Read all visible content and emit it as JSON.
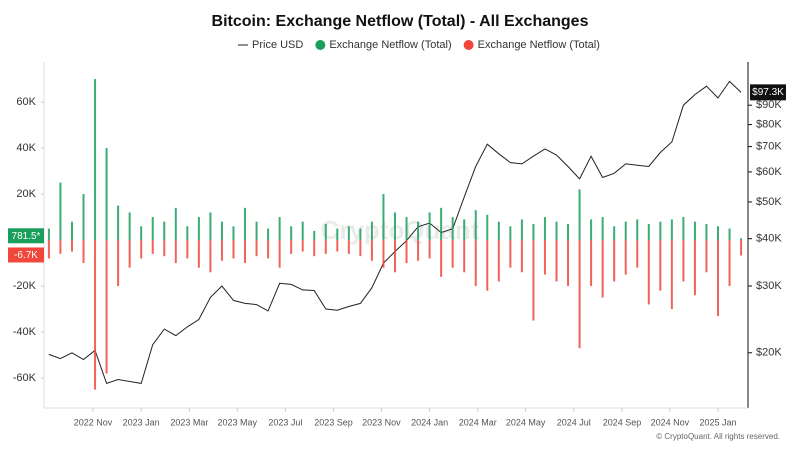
{
  "chart_data": {
    "type": "combo",
    "title": "Bitcoin: Exchange Netflow (Total) - All Exchanges",
    "watermark": "CryptoQuant",
    "footer": "© CryptoQuant. All rights reserved.",
    "x": [
      2022.68,
      2022.72,
      2022.76,
      2022.8,
      2022.84,
      2022.88,
      2022.92,
      2022.96,
      2023.0,
      2023.04,
      2023.08,
      2023.12,
      2023.16,
      2023.2,
      2023.24,
      2023.28,
      2023.32,
      2023.36,
      2023.4,
      2023.44,
      2023.48,
      2023.52,
      2023.56,
      2023.6,
      2023.64,
      2023.68,
      2023.72,
      2023.76,
      2023.8,
      2023.84,
      2023.88,
      2023.92,
      2023.96,
      2024.0,
      2024.04,
      2024.08,
      2024.12,
      2024.16,
      2024.2,
      2024.24,
      2024.28,
      2024.32,
      2024.36,
      2024.4,
      2024.44,
      2024.48,
      2024.52,
      2024.56,
      2024.6,
      2024.64,
      2024.68,
      2024.72,
      2024.76,
      2024.8,
      2024.84,
      2024.88,
      2024.92,
      2024.96,
      2025.0,
      2025.04,
      2025.08
    ],
    "xlim": [
      2022.663,
      2025.104
    ],
    "xticks": [
      {
        "value": 2022.833,
        "label": "2022 Nov"
      },
      {
        "value": 2023.0,
        "label": "2023 Jan"
      },
      {
        "value": 2023.167,
        "label": "2023 Mar"
      },
      {
        "value": 2023.333,
        "label": "2023 May"
      },
      {
        "value": 2023.5,
        "label": "2023 Jul"
      },
      {
        "value": 2023.667,
        "label": "2023 Sep"
      },
      {
        "value": 2023.833,
        "label": "2023 Nov"
      },
      {
        "value": 2024.0,
        "label": "2024 Jan"
      },
      {
        "value": 2024.167,
        "label": "2024 Mar"
      },
      {
        "value": 2024.333,
        "label": "2024 May"
      },
      {
        "value": 2024.5,
        "label": "2024 Jul"
      },
      {
        "value": 2024.667,
        "label": "2024 Sep"
      },
      {
        "value": 2024.833,
        "label": "2024 Nov"
      },
      {
        "value": 2025.0,
        "label": "2025 Jan"
      }
    ],
    "ylim": [
      -73000,
      77400
    ],
    "yticks": [
      {
        "value": 60000,
        "label": "60K"
      },
      {
        "value": 40000,
        "label": "40K"
      },
      {
        "value": 20000,
        "label": "20K"
      },
      {
        "value": -20000,
        "label": "-20K"
      },
      {
        "value": -40000,
        "label": "-40K"
      },
      {
        "value": -60000,
        "label": "-60K"
      }
    ],
    "y2lim": [
      14300,
      117000
    ],
    "y2log": true,
    "y2ticks": [
      {
        "value": 20000,
        "label": "$20K"
      },
      {
        "value": 30000,
        "label": "$30K"
      },
      {
        "value": 40000,
        "label": "$40K"
      },
      {
        "value": 50000,
        "label": "$50K"
      },
      {
        "value": 60000,
        "label": "$60K"
      },
      {
        "value": 70000,
        "label": "$70K"
      },
      {
        "value": 80000,
        "label": "$80K"
      },
      {
        "value": 90000,
        "label": "$90K"
      }
    ],
    "series": [
      {
        "name": "Price USD",
        "type": "line",
        "axis": "y2",
        "color": "#222222",
        "values": [
          19800,
          19300,
          20000,
          19200,
          20300,
          16600,
          17000,
          16800,
          16600,
          21000,
          23100,
          22200,
          23400,
          24500,
          28000,
          30000,
          27500,
          27000,
          26800,
          25800,
          30500,
          30300,
          29300,
          29200,
          26100,
          25900,
          26500,
          27000,
          29700,
          34500,
          37000,
          39500,
          43000,
          44000,
          41500,
          42500,
          51500,
          62000,
          71000,
          67000,
          63500,
          63000,
          66000,
          69000,
          66500,
          62000,
          57500,
          66000,
          58000,
          59500,
          63000,
          62500,
          62000,
          67500,
          72000,
          90000,
          96000,
          101000,
          94000,
          104000,
          97300
        ],
        "value_labels": [
          null,
          null,
          null,
          null,
          null,
          null,
          null,
          null,
          null,
          null,
          null,
          null,
          null,
          null,
          null,
          null,
          null,
          null,
          null,
          null,
          null,
          null,
          null,
          null,
          null,
          null,
          null,
          null,
          null,
          null,
          null,
          null,
          null,
          null,
          null,
          null,
          null,
          null,
          null,
          null,
          null,
          null,
          null,
          null,
          null,
          null,
          null,
          null,
          null,
          null,
          null,
          null,
          null,
          null,
          null,
          null,
          null,
          null,
          null,
          null,
          "$97.3K"
        ]
      },
      {
        "name": "Exchange Netflow (Total)",
        "type": "bar",
        "color": "#1a9e5c",
        "values": [
          5000,
          25000,
          8000,
          20000,
          70000,
          40000,
          15000,
          12000,
          6000,
          10000,
          8000,
          14000,
          6000,
          10000,
          12000,
          8000,
          6000,
          14000,
          8000,
          5000,
          10000,
          6000,
          8000,
          4000,
          7000,
          5000,
          6000,
          5000,
          8000,
          20000,
          12000,
          10000,
          8000,
          12000,
          14000,
          10000,
          9000,
          13000,
          11000,
          8000,
          6000,
          9000,
          7000,
          10000,
          8000,
          7000,
          22000,
          9000,
          10000,
          6000,
          8000,
          9000,
          7000,
          8000,
          9000,
          10000,
          8000,
          7000,
          6000,
          5000,
          781.5
        ],
        "value_labels": [
          null,
          null,
          null,
          null,
          null,
          null,
          null,
          null,
          null,
          null,
          null,
          null,
          null,
          null,
          null,
          null,
          null,
          null,
          null,
          null,
          null,
          null,
          null,
          null,
          null,
          null,
          null,
          null,
          null,
          null,
          null,
          null,
          null,
          null,
          null,
          null,
          null,
          null,
          null,
          null,
          null,
          null,
          null,
          null,
          null,
          null,
          null,
          null,
          null,
          null,
          null,
          null,
          null,
          null,
          null,
          null,
          null,
          null,
          null,
          null,
          "781.5*"
        ]
      },
      {
        "name": "Exchange Netflow (Total)",
        "type": "bar",
        "color": "#f0463c",
        "values": [
          -8000,
          -6000,
          -5000,
          -10000,
          -65000,
          -58000,
          -20000,
          -12000,
          -8000,
          -6000,
          -7000,
          -10000,
          -8000,
          -12000,
          -14000,
          -9000,
          -8000,
          -10000,
          -7000,
          -8000,
          -12000,
          -6000,
          -5000,
          -7000,
          -6000,
          -5000,
          -6000,
          -7000,
          -9000,
          -12000,
          -14000,
          -10000,
          -9000,
          -8000,
          -16000,
          -12000,
          -14000,
          -20000,
          -22000,
          -18000,
          -12000,
          -14000,
          -35000,
          -15000,
          -18000,
          -20000,
          -47000,
          -20000,
          -25000,
          -18000,
          -15000,
          -12000,
          -28000,
          -22000,
          -30000,
          -18000,
          -24000,
          -14000,
          -33000,
          -20000,
          -6700
        ],
        "value_labels": [
          null,
          null,
          null,
          null,
          null,
          null,
          null,
          null,
          null,
          null,
          null,
          null,
          null,
          null,
          null,
          null,
          null,
          null,
          null,
          null,
          null,
          null,
          null,
          null,
          null,
          null,
          null,
          null,
          null,
          null,
          null,
          null,
          null,
          null,
          null,
          null,
          null,
          null,
          null,
          null,
          null,
          null,
          null,
          null,
          null,
          null,
          null,
          null,
          null,
          null,
          null,
          null,
          null,
          null,
          null,
          null,
          null,
          null,
          null,
          null,
          "-6.7K"
        ]
      }
    ]
  }
}
